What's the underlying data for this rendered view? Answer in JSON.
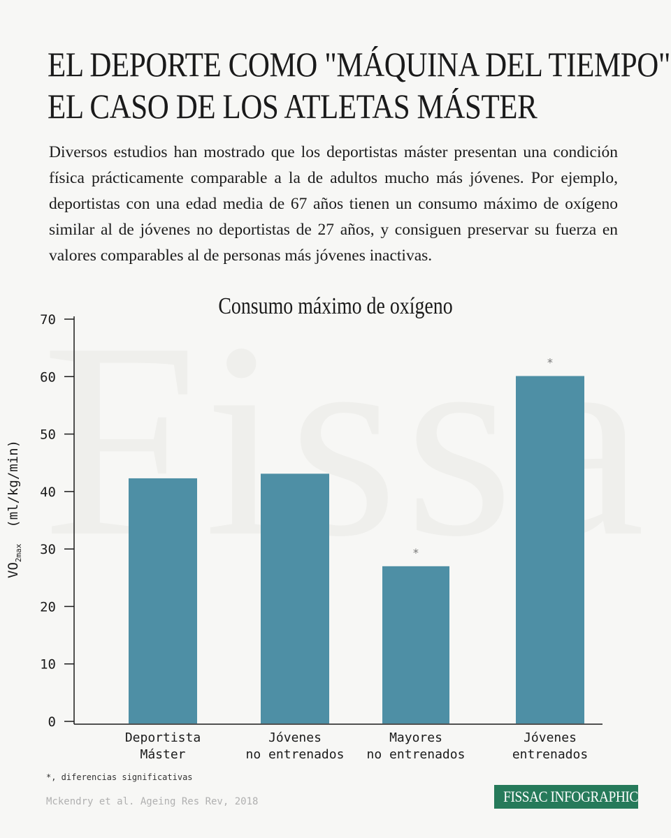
{
  "title_lines": [
    "EL DEPORTE COMO \"MÁQUINA DEL TIEMPO\":",
    "EL CASO DE LOS ATLETAS MÁSTER"
  ],
  "intro": "Diversos estudios han mostrado que los deportistas máster presentan una condición física prácticamente comparable a la de adultos mucho más jóvenes. Por ejemplo, deportistas con una edad media de 67 años tienen un consumo máximo de oxígeno similar al de jóvenes no deportistas de 27 años, y consiguen preservar su fuerza en valores comparables al de personas más jóvenes inactivas.",
  "watermark": "Fissac",
  "footnote": "*, diferencias significativas",
  "source": "Mckendry et al. Ageing Res Rev, 2018",
  "brand": "FISSAC INFOGRAPHIC",
  "colors": {
    "bar": "#4e8fa5",
    "brand": "#267a5a",
    "axis": "#1a1a1a"
  },
  "chart_data": {
    "type": "bar",
    "title": "Consumo máximo de oxígeno",
    "ylabel_main": "VO",
    "ylabel_sub": "2max",
    "ylabel_unit": "(ml/kg/min)",
    "ylim": [
      0,
      70
    ],
    "yticks": [
      "0",
      "10",
      "20",
      "30",
      "40",
      "50",
      "60",
      "70"
    ],
    "categories": [
      [
        "Deportista",
        "Máster"
      ],
      [
        "Jóvenes",
        "no entrenados"
      ],
      [
        "Mayores",
        "no entrenados"
      ],
      [
        "Jóvenes",
        "entrenados"
      ]
    ],
    "values": [
      42.3,
      43.1,
      27.0,
      60.1
    ],
    "markers": [
      "",
      "",
      "*",
      "*"
    ],
    "grid": false
  }
}
